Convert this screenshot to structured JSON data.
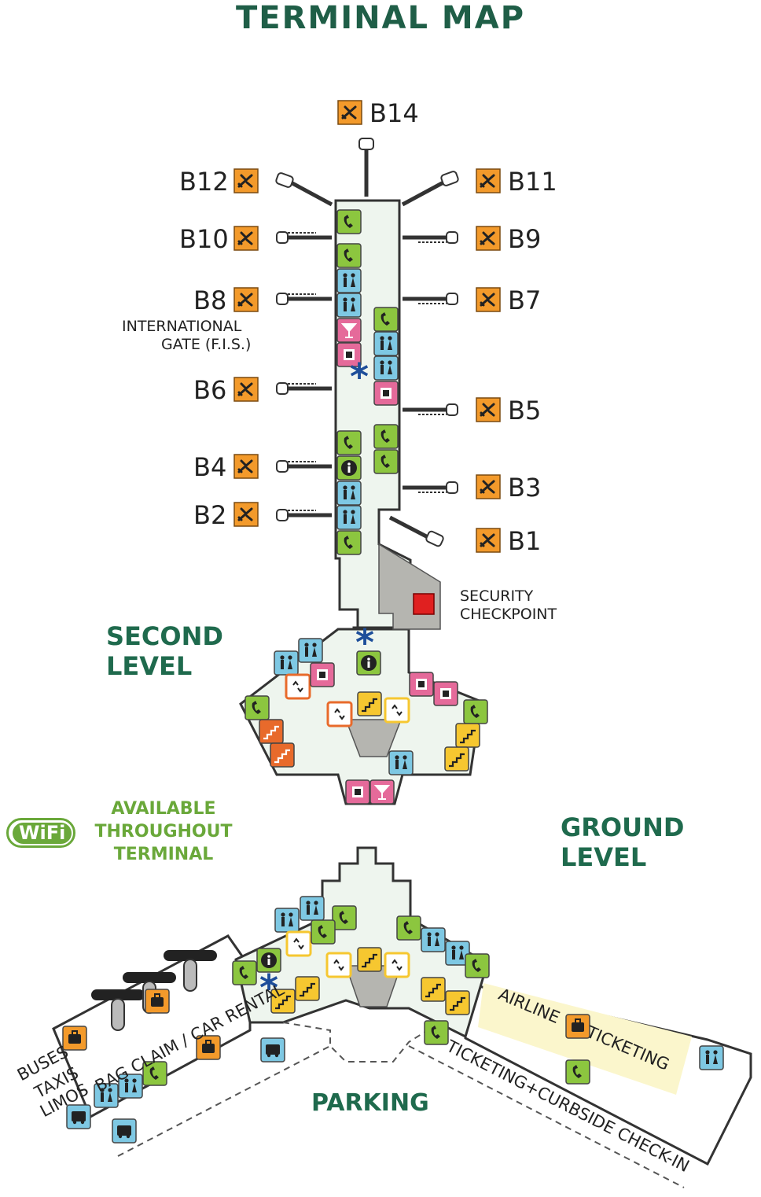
{
  "title": "TERMINAL MAP",
  "gates": {
    "b14": "B14",
    "b12": "B12",
    "b11": "B11",
    "b10": "B10",
    "b9": "B9",
    "b8": "B8",
    "b7": "B7",
    "b6": "B6",
    "b5": "B5",
    "b4": "B4",
    "b3": "B3",
    "b2": "B2",
    "b1": "B1"
  },
  "labels": {
    "international_line1": "INTERNATIONAL",
    "international_line2": "GATE  (F.I.S.)",
    "security_line1": "SECURITY",
    "security_line2": "CHECKPOINT",
    "second_level_line1": "SECOND",
    "second_level_line2": "LEVEL",
    "ground_level_line1": "GROUND",
    "ground_level_line2": "LEVEL",
    "wifi_logo": "WiFi",
    "wifi_line1": "AVAILABLE",
    "wifi_line2": "THROUGHOUT",
    "wifi_line3": "TERMINAL",
    "parking": "PARKING",
    "buses": "BUSES",
    "taxis": "TAXIS",
    "limos": "LIMOS",
    "bag_claim": "BAG CLAIM / CAR RENTAL",
    "airline": "AIRLINE",
    "ticketing": "TICKETING",
    "curbside": "TICKETING+CURBSIDE CHECK-IN"
  },
  "colors": {
    "concourse": "#eef5ee",
    "outline": "#333333",
    "gate_orange": "#f39a2b",
    "icon_green": "#8cc63f",
    "icon_blue": "#7ec8e3",
    "icon_pink": "#e56a9a",
    "icon_yellow": "#f6c730",
    "icon_orange": "#e86a2b",
    "security_gray": "#b5b5b0",
    "security_red": "#e02020",
    "ticketing_band": "#fbf6cc",
    "title_green": "#1f5e47",
    "wifi_green": "#6aa83a"
  },
  "icons": {
    "gate": "airplane-icon",
    "phone": "phone-icon",
    "restroom": "restroom-icon",
    "family": "family-restroom-icon",
    "food": "food-icon",
    "bar": "cocktail-icon",
    "info": "info-icon",
    "escalator": "escalator-icon",
    "stairs": "stairs-icon",
    "elevator": "elevator-icon",
    "atm": "atm-icon",
    "baggage": "baggage-icon",
    "car": "car-rental-icon",
    "bus": "bus-icon",
    "mail": "mail-icon",
    "star": "you-are-here-icon"
  }
}
